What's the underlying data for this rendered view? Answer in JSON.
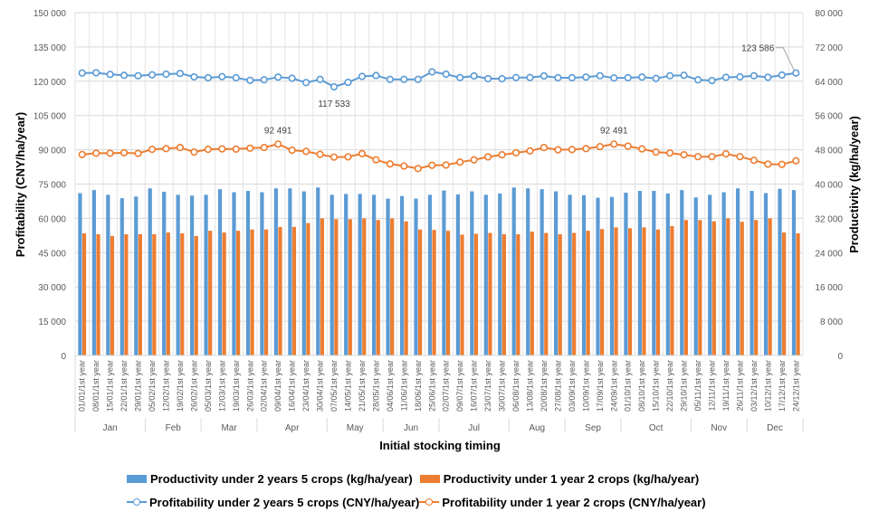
{
  "chart_data": {
    "type": "bar",
    "title": "",
    "xlabel": "Initial stocking timing",
    "ylabel_left": "Profitability (CNY/ha/year)",
    "ylabel_right": "Productivity (kg/ha/year)",
    "ylim_left": [
      0,
      150000
    ],
    "ylim_right": [
      0,
      80000
    ],
    "yticks_left": [
      "0",
      "15 000",
      "30 000",
      "45 000",
      "60 000",
      "75 000",
      "90 000",
      "105 000",
      "120 000",
      "135 000",
      "150 000"
    ],
    "yticks_right": [
      "0",
      "8 000",
      "16 000",
      "24 000",
      "32 000",
      "40 000",
      "48 000",
      "56 000",
      "64 000",
      "72 000",
      "80 000"
    ],
    "grid": true,
    "legend_position": "bottom",
    "categories": [
      "01/01/1st year",
      "08/01/1st year",
      "15/01/1st year",
      "22/01/1st year",
      "29/01/1st year",
      "05/02/1st year",
      "12/02/1st year",
      "19/02/1st year",
      "26/02/1st year",
      "05/03/1st year",
      "12/03/1st year",
      "19/03/1st year",
      "26/03/1st year",
      "02/04/1st year",
      "09/04/1st year",
      "16/04/1st year",
      "23/04/1st year",
      "30/04/1st year",
      "07/05/1st year",
      "14/05/1st year",
      "21/05/1st year",
      "28/05/1st year",
      "04/06/1st year",
      "11/06/1st year",
      "18/06/1st year",
      "25/06/1st year",
      "02/07/1st year",
      "09/07/1st year",
      "16/07/1st year",
      "23/07/1st year",
      "30/07/1st year",
      "06/08/1st year",
      "13/08/1st year",
      "20/08/1st year",
      "27/08/1st year",
      "03/09/1st year",
      "10/09/1st year",
      "17/09/1st year",
      "24/09/1st year",
      "01/10/1st year",
      "08/10/1st year",
      "15/10/1st year",
      "22/10/1st year",
      "29/10/1st year",
      "05/11/1st year",
      "12/11/1st year",
      "19/11/1st year",
      "26/11/1st year",
      "03/12/1st year",
      "10/12/1st year",
      "17/12/1st year",
      "24/12/1st year"
    ],
    "month_groups": [
      {
        "label": "Jan",
        "count": 5
      },
      {
        "label": "Feb",
        "count": 4
      },
      {
        "label": "Mar",
        "count": 4
      },
      {
        "label": "Apr",
        "count": 5
      },
      {
        "label": "May",
        "count": 4
      },
      {
        "label": "Jun",
        "count": 4
      },
      {
        "label": "Jul",
        "count": 5
      },
      {
        "label": "Aug",
        "count": 4
      },
      {
        "label": "Sep",
        "count": 4
      },
      {
        "label": "Oct",
        "count": 5
      },
      {
        "label": "Nov",
        "count": 4
      },
      {
        "label": "Dec",
        "count": 4
      }
    ],
    "series": [
      {
        "name": "Productivity under 2 years 5 crops (kg/ha/year)",
        "kind": "bar",
        "axis": "right",
        "color": "#5B9BD5",
        "values": [
          37900,
          38600,
          37500,
          36700,
          37100,
          39000,
          38200,
          37500,
          37300,
          37500,
          38800,
          38100,
          38400,
          38100,
          39000,
          39000,
          38300,
          39200,
          37500,
          37700,
          37700,
          37500,
          36600,
          37200,
          36600,
          37500,
          38500,
          37600,
          38300,
          37500,
          37800,
          39200,
          39000,
          38800,
          38300,
          37500,
          37400,
          36800,
          37000,
          38000,
          38400,
          38400,
          37800,
          38600,
          36900,
          37500,
          38100,
          39000,
          38400,
          37900,
          38900,
          38600
        ]
      },
      {
        "name": "Productivity under 1 year 2 crops (kg/ha/year)",
        "kind": "bar",
        "axis": "right",
        "color": "#ED7D31",
        "values": [
          28500,
          28300,
          27900,
          28300,
          28300,
          28300,
          28700,
          28500,
          27900,
          29100,
          28700,
          29100,
          29400,
          29400,
          30000,
          30000,
          30900,
          32000,
          31800,
          31800,
          32000,
          31600,
          32000,
          31300,
          29400,
          29300,
          29100,
          28200,
          28400,
          28600,
          28300,
          28300,
          28900,
          28600,
          28300,
          28600,
          29100,
          29500,
          29900,
          29700,
          29900,
          29400,
          30200,
          31600,
          31600,
          31300,
          32000,
          31200,
          31600,
          32000,
          28700,
          28500
        ]
      },
      {
        "name": "Profitability under 2 years 5 crops (CNY/ha/year)",
        "kind": "line",
        "axis": "left",
        "color": "#5B9BD5",
        "values": [
          123600,
          123700,
          123000,
          122600,
          122400,
          122800,
          123100,
          123400,
          121900,
          121500,
          122000,
          121500,
          120400,
          120600,
          121800,
          121300,
          119400,
          120800,
          117533,
          119500,
          122100,
          122500,
          120800,
          120800,
          120800,
          124100,
          123100,
          121600,
          122300,
          121100,
          121100,
          121600,
          121600,
          122300,
          121500,
          121500,
          121800,
          122400,
          121400,
          121500,
          121800,
          121200,
          122400,
          122600,
          120600,
          120300,
          121700,
          121900,
          122400,
          121700,
          122700,
          123586
        ]
      },
      {
        "name": "Profitability under 1 year 2 crops (CNY/ha/year)",
        "kind": "line",
        "axis": "left",
        "color": "#ED7D31",
        "values": [
          87900,
          88500,
          88500,
          88700,
          88400,
          90200,
          90500,
          91000,
          89000,
          90200,
          90400,
          90300,
          90700,
          91000,
          92491,
          89800,
          89300,
          88000,
          86800,
          86900,
          88300,
          85600,
          83800,
          82900,
          81800,
          83200,
          83300,
          84600,
          85600,
          86900,
          87800,
          88700,
          89500,
          91000,
          90000,
          90100,
          90500,
          91400,
          92491,
          91600,
          90400,
          89000,
          88600,
          87800,
          87000,
          87000,
          88200,
          87000,
          85400,
          83700,
          83600,
          85200
        ]
      }
    ],
    "annotations": [
      {
        "text": "123 586",
        "series": "Profitability under 2 years 5 crops (CNY/ha/year)",
        "category": "24/12/1st year"
      },
      {
        "text": "117 533",
        "series": "Profitability under 2 years 5 crops (CNY/ha/year)",
        "category": "07/05/1st year"
      },
      {
        "text": "92 491",
        "series": "Profitability under 1 year 2 crops (CNY/ha/year)",
        "category": "09/04/1st year"
      },
      {
        "text": "92 491",
        "series": "Profitability under 1 year 2 crops (CNY/ha/year)",
        "category": "24/09/1st year"
      }
    ]
  },
  "legend": {
    "items": [
      {
        "label": "Productivity under 2 years 5 crops (kg/ha/year)",
        "color": "#5B9BD5",
        "kind": "bar"
      },
      {
        "label": "Productivity under 1 year 2 crops (kg/ha/year)",
        "color": "#ED7D31",
        "kind": "bar"
      },
      {
        "label": "Profitability under 2 years 5 crops (CNY/ha/year)",
        "color": "#5B9BD5",
        "kind": "line"
      },
      {
        "label": "Profitability under 1 year 2 crops (CNY/ha/year)",
        "color": "#ED7D31",
        "kind": "line"
      }
    ]
  }
}
